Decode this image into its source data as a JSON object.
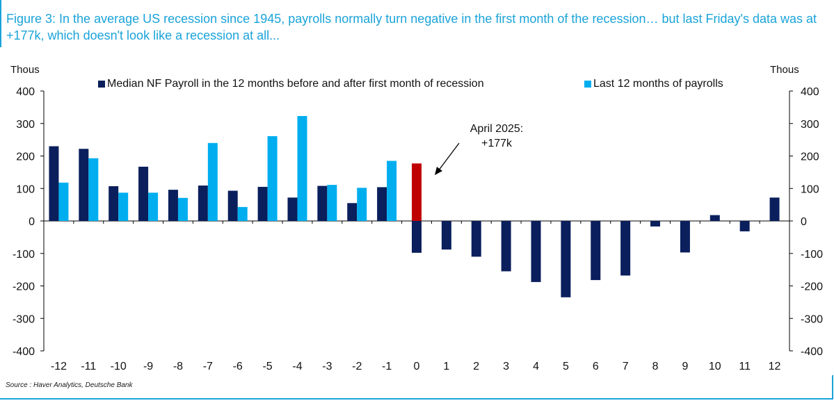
{
  "title": "Figure 3: In the average US recession since 1945, payrolls normally turn negative in the first month of the recession… but last Friday's data was at +177k, which doesn't look like a recession at all...",
  "source": "Source : Haver Analytics, Deutsche Bank",
  "colors": {
    "accent": "#1aa3d9",
    "series_dark": "#0a1f5c",
    "series_light": "#00aeef",
    "highlight": "#c00000"
  },
  "chart_data": {
    "type": "bar",
    "ylabel_left": "Thous",
    "ylabel_right": "Thous",
    "ylim": [
      -400,
      400
    ],
    "yticks": [
      -400,
      -300,
      -200,
      -100,
      0,
      100,
      200,
      300,
      400
    ],
    "categories": [
      "-12",
      "-11",
      "-10",
      "-9",
      "-8",
      "-7",
      "-6",
      "-5",
      "-4",
      "-3",
      "-2",
      "-1",
      "0",
      "1",
      "2",
      "3",
      "4",
      "5",
      "6",
      "7",
      "8",
      "9",
      "10",
      "11",
      "12"
    ],
    "series": [
      {
        "name": "Median NF Payroll in the 12 months before and after first month of recession",
        "color": "#0a1f5c",
        "values": [
          230,
          222,
          107,
          167,
          96,
          109,
          93,
          105,
          72,
          108,
          55,
          104,
          -98,
          -88,
          -110,
          -155,
          -188,
          -235,
          -182,
          -168,
          -17,
          -97,
          18,
          -32,
          72
        ]
      },
      {
        "name": "Last 12 months of payrolls",
        "color": "#00aeef",
        "values": [
          118,
          193,
          87,
          87,
          71,
          240,
          43,
          261,
          323,
          111,
          102,
          185,
          177,
          null,
          null,
          null,
          null,
          null,
          null,
          null,
          null,
          null,
          null,
          null,
          null
        ]
      }
    ],
    "highlight": {
      "category": "0",
      "value": 177,
      "color": "#c00000"
    },
    "annotation": {
      "text_line1": "April 2025:",
      "text_line2": "+177k"
    },
    "legend_placement": "top",
    "grid": false
  }
}
